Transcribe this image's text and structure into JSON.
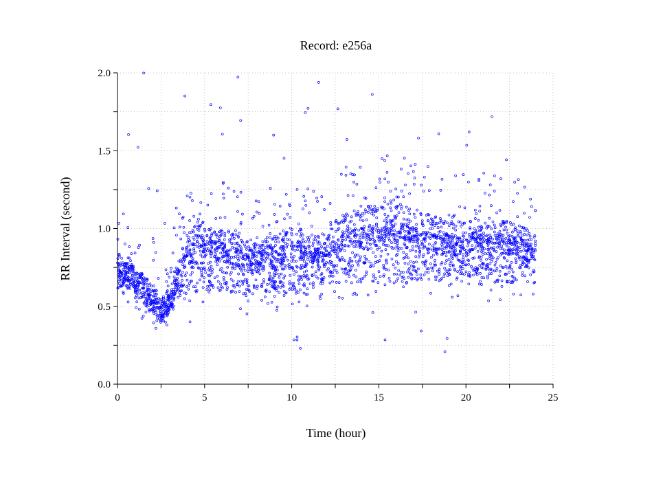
{
  "chart_data": {
    "type": "scatter",
    "title": "Record:  e256a",
    "xlabel": "Time (hour)",
    "ylabel": "RR Interval (second)",
    "xlim": [
      0,
      25
    ],
    "ylim": [
      0,
      2.0
    ],
    "x_ticks": [
      0,
      5,
      10,
      15,
      20,
      25
    ],
    "y_ticks": [
      0.0,
      0.5,
      1.0,
      1.5,
      2.0
    ],
    "x_tick_labels": [
      "0",
      "5",
      "10",
      "15",
      "20",
      "25"
    ],
    "y_tick_labels": [
      "0.0",
      "0.5",
      "1.0",
      "1.5",
      "2.0"
    ],
    "grid": true,
    "legend": "none",
    "marker": "open-circle",
    "series_color": "#0000ff",
    "time_range_hours": [
      0,
      24
    ],
    "trend_profile": {
      "x": [
        0,
        0.5,
        1,
        1.5,
        2,
        2.5,
        3,
        3.5,
        4,
        4.5,
        5,
        5.5,
        6,
        6.5,
        7,
        7.5,
        8,
        8.5,
        9,
        9.5,
        10,
        10.5,
        11,
        11.5,
        12,
        12.5,
        13,
        13.5,
        14,
        14.5,
        15,
        15.5,
        16,
        16.5,
        17,
        17.5,
        18,
        18.5,
        19,
        19.5,
        20,
        20.5,
        21,
        21.5,
        22,
        22.5,
        23,
        23.5,
        24
      ],
      "band_low": [
        0.6,
        0.62,
        0.58,
        0.5,
        0.45,
        0.4,
        0.45,
        0.55,
        0.6,
        0.6,
        0.6,
        0.6,
        0.6,
        0.58,
        0.58,
        0.58,
        0.58,
        0.58,
        0.57,
        0.57,
        0.55,
        0.58,
        0.57,
        0.62,
        0.65,
        0.65,
        0.65,
        0.65,
        0.65,
        0.65,
        0.65,
        0.65,
        0.65,
        0.65,
        0.65,
        0.65,
        0.65,
        0.65,
        0.7,
        0.7,
        0.7,
        0.68,
        0.68,
        0.65,
        0.65,
        0.65,
        0.65,
        0.65,
        0.65
      ],
      "band_high": [
        0.85,
        0.8,
        0.75,
        0.7,
        0.65,
        0.55,
        0.62,
        0.8,
        0.95,
        1.05,
        1.05,
        1.0,
        1.0,
        0.98,
        0.95,
        0.92,
        0.95,
        0.95,
        0.95,
        0.98,
        1.0,
        1.0,
        0.98,
        0.95,
        1.0,
        1.05,
        1.1,
        1.12,
        1.12,
        1.15,
        1.18,
        1.18,
        1.18,
        1.15,
        1.12,
        1.1,
        1.1,
        1.08,
        1.05,
        1.05,
        1.05,
        1.08,
        1.08,
        1.06,
        1.05,
        1.05,
        1.05,
        1.0,
        0.95
      ],
      "center": [
        0.75,
        0.72,
        0.68,
        0.62,
        0.55,
        0.45,
        0.52,
        0.7,
        0.85,
        0.9,
        0.88,
        0.86,
        0.85,
        0.83,
        0.8,
        0.78,
        0.8,
        0.82,
        0.82,
        0.85,
        0.85,
        0.86,
        0.85,
        0.82,
        0.85,
        0.88,
        0.92,
        0.95,
        0.95,
        0.95,
        0.98,
        0.98,
        0.98,
        0.97,
        0.95,
        0.92,
        0.92,
        0.9,
        0.9,
        0.88,
        0.9,
        0.92,
        0.93,
        0.92,
        0.9,
        0.9,
        0.88,
        0.85,
        0.82
      ]
    }
  }
}
